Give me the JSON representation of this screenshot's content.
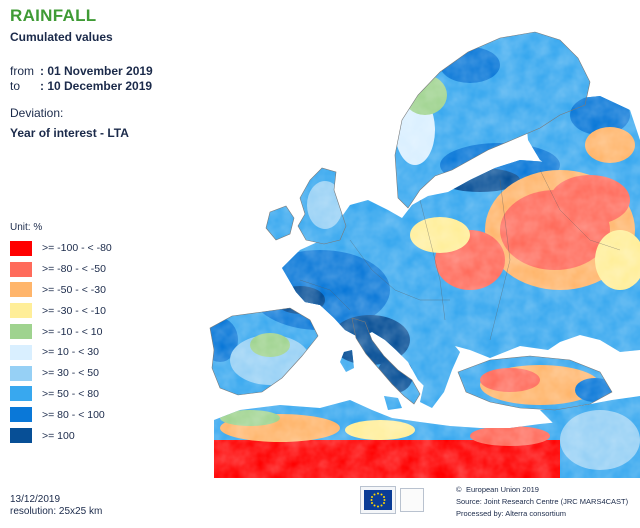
{
  "header": {
    "title": "RAINFALL",
    "subtitle": "Cumulated values"
  },
  "period": {
    "from_key": "from",
    "from_value": ": 01 November 2019",
    "to_key": "to",
    "to_value": ": 10 December 2019"
  },
  "deviation": {
    "label": "Deviation:",
    "value": "Year of interest - LTA"
  },
  "legend": {
    "unit": "Unit:  %",
    "items": [
      {
        "label": ">= -100 - < -80",
        "color": "#ff0000"
      },
      {
        "label": ">= -80 - < -50",
        "color": "#ff6b5b"
      },
      {
        "label": ">= -50 - < -30",
        "color": "#ffb56b"
      },
      {
        "label": ">= -30 - < -10",
        "color": "#ffee99"
      },
      {
        "label": ">= -10 - < 10",
        "color": "#9fd38f"
      },
      {
        "label": ">= 10 - < 30",
        "color": "#d9efff"
      },
      {
        "label": ">= 30 - < 50",
        "color": "#96d0f5"
      },
      {
        "label": ">= 50 - < 80",
        "color": "#38a8ef"
      },
      {
        "label": ">= 80 - < 100",
        "color": "#0a78d8"
      },
      {
        "label": ">= 100",
        "color": "#074f96"
      }
    ]
  },
  "footer": {
    "date": "13/12/2019",
    "resolution": "resolution:  25x25 km",
    "copyright": "European Union 2019",
    "source": "Source: Joint Research Centre (JRC MARS4CAST)",
    "processed": "Processed by: Alterra consortium",
    "logo_icon": "eu-flag-icon"
  },
  "map": {
    "sea_color": "#ffffff",
    "land_outline": "#7a7a7a"
  }
}
